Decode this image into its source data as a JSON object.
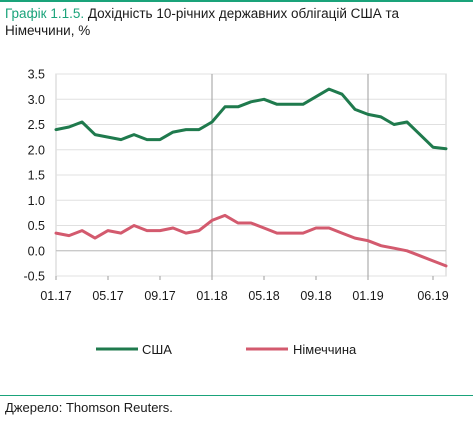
{
  "title": {
    "number": "Графік 1.1.5.",
    "text": "Дохідність 10-річних державних облігацій США та Німеччини, %"
  },
  "source": "Джерело: Thomson Reuters.",
  "colors": {
    "accent": "#1aa37a",
    "usa": "#1f7a4d",
    "germany": "#d35a6e",
    "grid": "#e0e0e0"
  },
  "chart_data": {
    "type": "line",
    "x_tick_labels": [
      "01.17",
      "05.17",
      "09.17",
      "01.18",
      "05.18",
      "09.18",
      "01.19",
      "06.19"
    ],
    "y_tick_labels": [
      "3.5",
      "3.0",
      "2.5",
      "2.0",
      "1.5",
      "1.0",
      "0.5",
      "0.0",
      "-0.5"
    ],
    "ylim": [
      -0.5,
      3.5
    ],
    "xlim": [
      "2017-01",
      "2019-07"
    ],
    "grid": true,
    "legend_position": "bottom",
    "series": [
      {
        "name": "США",
        "x": [
          "2017-01",
          "2017-02",
          "2017-03",
          "2017-04",
          "2017-05",
          "2017-06",
          "2017-07",
          "2017-08",
          "2017-09",
          "2017-10",
          "2017-11",
          "2017-12",
          "2018-01",
          "2018-02",
          "2018-03",
          "2018-04",
          "2018-05",
          "2018-06",
          "2018-07",
          "2018-08",
          "2018-09",
          "2018-10",
          "2018-11",
          "2018-12",
          "2019-01",
          "2019-02",
          "2019-03",
          "2019-04",
          "2019-05",
          "2019-06",
          "2019-07"
        ],
        "values": [
          2.4,
          2.45,
          2.55,
          2.3,
          2.25,
          2.2,
          2.3,
          2.2,
          2.2,
          2.35,
          2.4,
          2.4,
          2.55,
          2.85,
          2.85,
          2.95,
          3.0,
          2.9,
          2.9,
          2.9,
          3.05,
          3.2,
          3.1,
          2.8,
          2.7,
          2.65,
          2.5,
          2.55,
          2.3,
          2.05,
          2.02
        ]
      },
      {
        "name": "Німеччина",
        "x": [
          "2017-01",
          "2017-02",
          "2017-03",
          "2017-04",
          "2017-05",
          "2017-06",
          "2017-07",
          "2017-08",
          "2017-09",
          "2017-10",
          "2017-11",
          "2017-12",
          "2018-01",
          "2018-02",
          "2018-03",
          "2018-04",
          "2018-05",
          "2018-06",
          "2018-07",
          "2018-08",
          "2018-09",
          "2018-10",
          "2018-11",
          "2018-12",
          "2019-01",
          "2019-02",
          "2019-03",
          "2019-04",
          "2019-05",
          "2019-06",
          "2019-07"
        ],
        "values": [
          0.35,
          0.3,
          0.4,
          0.25,
          0.4,
          0.35,
          0.5,
          0.4,
          0.4,
          0.45,
          0.35,
          0.4,
          0.6,
          0.7,
          0.55,
          0.55,
          0.45,
          0.35,
          0.35,
          0.35,
          0.45,
          0.45,
          0.35,
          0.25,
          0.2,
          0.1,
          0.05,
          0.0,
          -0.1,
          -0.2,
          -0.3
        ]
      }
    ]
  }
}
